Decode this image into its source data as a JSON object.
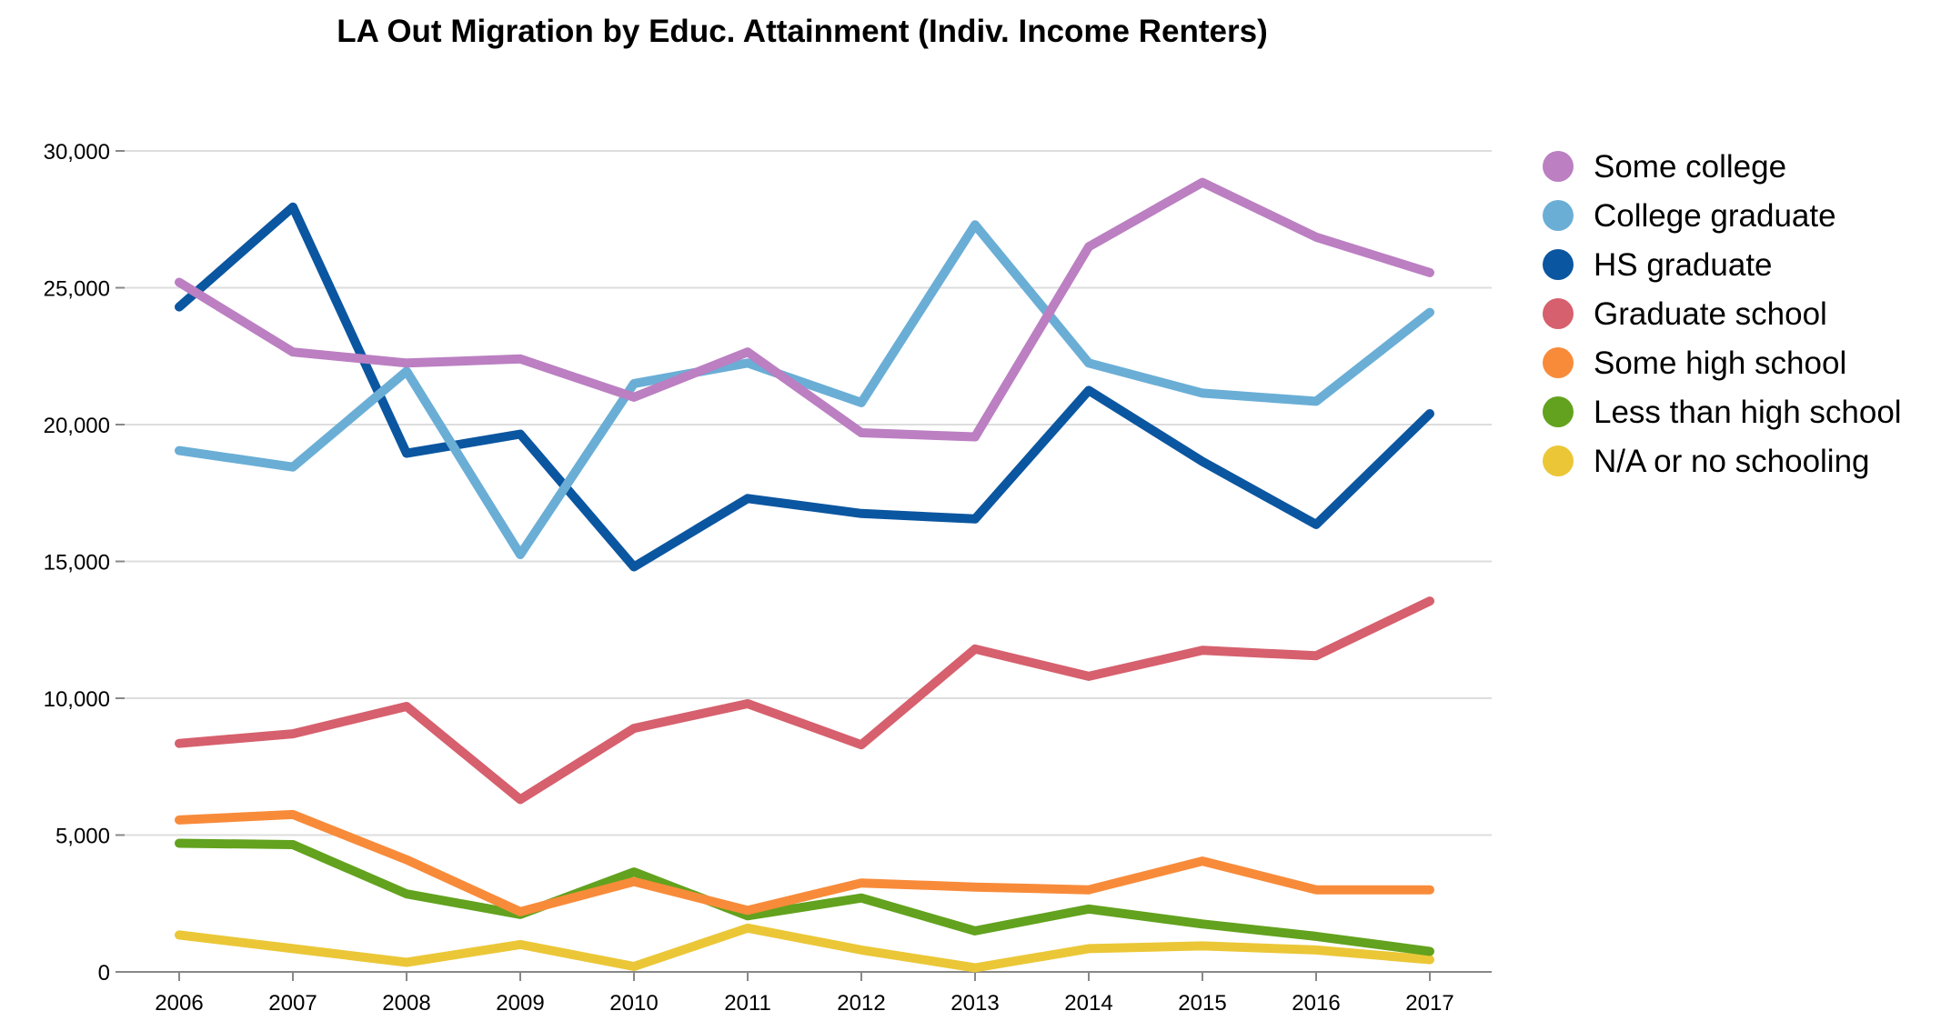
{
  "chart_data": {
    "type": "line",
    "title": "LA Out Migration by Educ. Attainment (Indiv. Income Renters)",
    "xlabel": "",
    "ylabel": "",
    "categories": [
      "2006",
      "2007",
      "2008",
      "2009",
      "2010",
      "2011",
      "2012",
      "2013",
      "2014",
      "2015",
      "2016",
      "2017"
    ],
    "ylim": [
      0,
      30000
    ],
    "y_ticks": [
      0,
      5000,
      10000,
      15000,
      20000,
      25000,
      30000
    ],
    "y_tick_labels": [
      "0",
      "5,000",
      "10,000",
      "15,000",
      "20,000",
      "25,000",
      "30,000"
    ],
    "grid": true,
    "legend_position": "right",
    "series": [
      {
        "name": "Some college",
        "color": "#bb7fc2",
        "values": [
          25200,
          22650,
          22250,
          22400,
          21000,
          22650,
          19700,
          19550,
          26500,
          28850,
          26850,
          25550
        ]
      },
      {
        "name": "College graduate",
        "color": "#6aaed6",
        "values": [
          19050,
          18450,
          21950,
          15250,
          21500,
          22250,
          20800,
          27300,
          22250,
          21150,
          20850,
          24100
        ]
      },
      {
        "name": "HS graduate",
        "color": "#0b56a0",
        "values": [
          24300,
          27950,
          18950,
          19650,
          14800,
          17300,
          16750,
          16550,
          21250,
          18650,
          16350,
          20400
        ]
      },
      {
        "name": "Graduate school",
        "color": "#d6606d",
        "values": [
          8350,
          8700,
          9700,
          6300,
          8900,
          9800,
          8300,
          11800,
          10800,
          11750,
          11550,
          13550
        ]
      },
      {
        "name": "Some high school",
        "color": "#f88b3a",
        "values": [
          5550,
          5750,
          4100,
          2200,
          3300,
          2250,
          3250,
          3100,
          3000,
          4050,
          3000,
          3000
        ]
      },
      {
        "name": "Less than high school",
        "color": "#62a21e",
        "values": [
          4700,
          4650,
          2850,
          2100,
          3650,
          2050,
          2700,
          1500,
          2300,
          1750,
          1300,
          750
        ]
      },
      {
        "name": "N/A or no schooling",
        "color": "#ebc737",
        "values": [
          1350,
          850,
          350,
          1000,
          200,
          1600,
          800,
          150,
          850,
          950,
          800,
          450
        ]
      }
    ]
  }
}
